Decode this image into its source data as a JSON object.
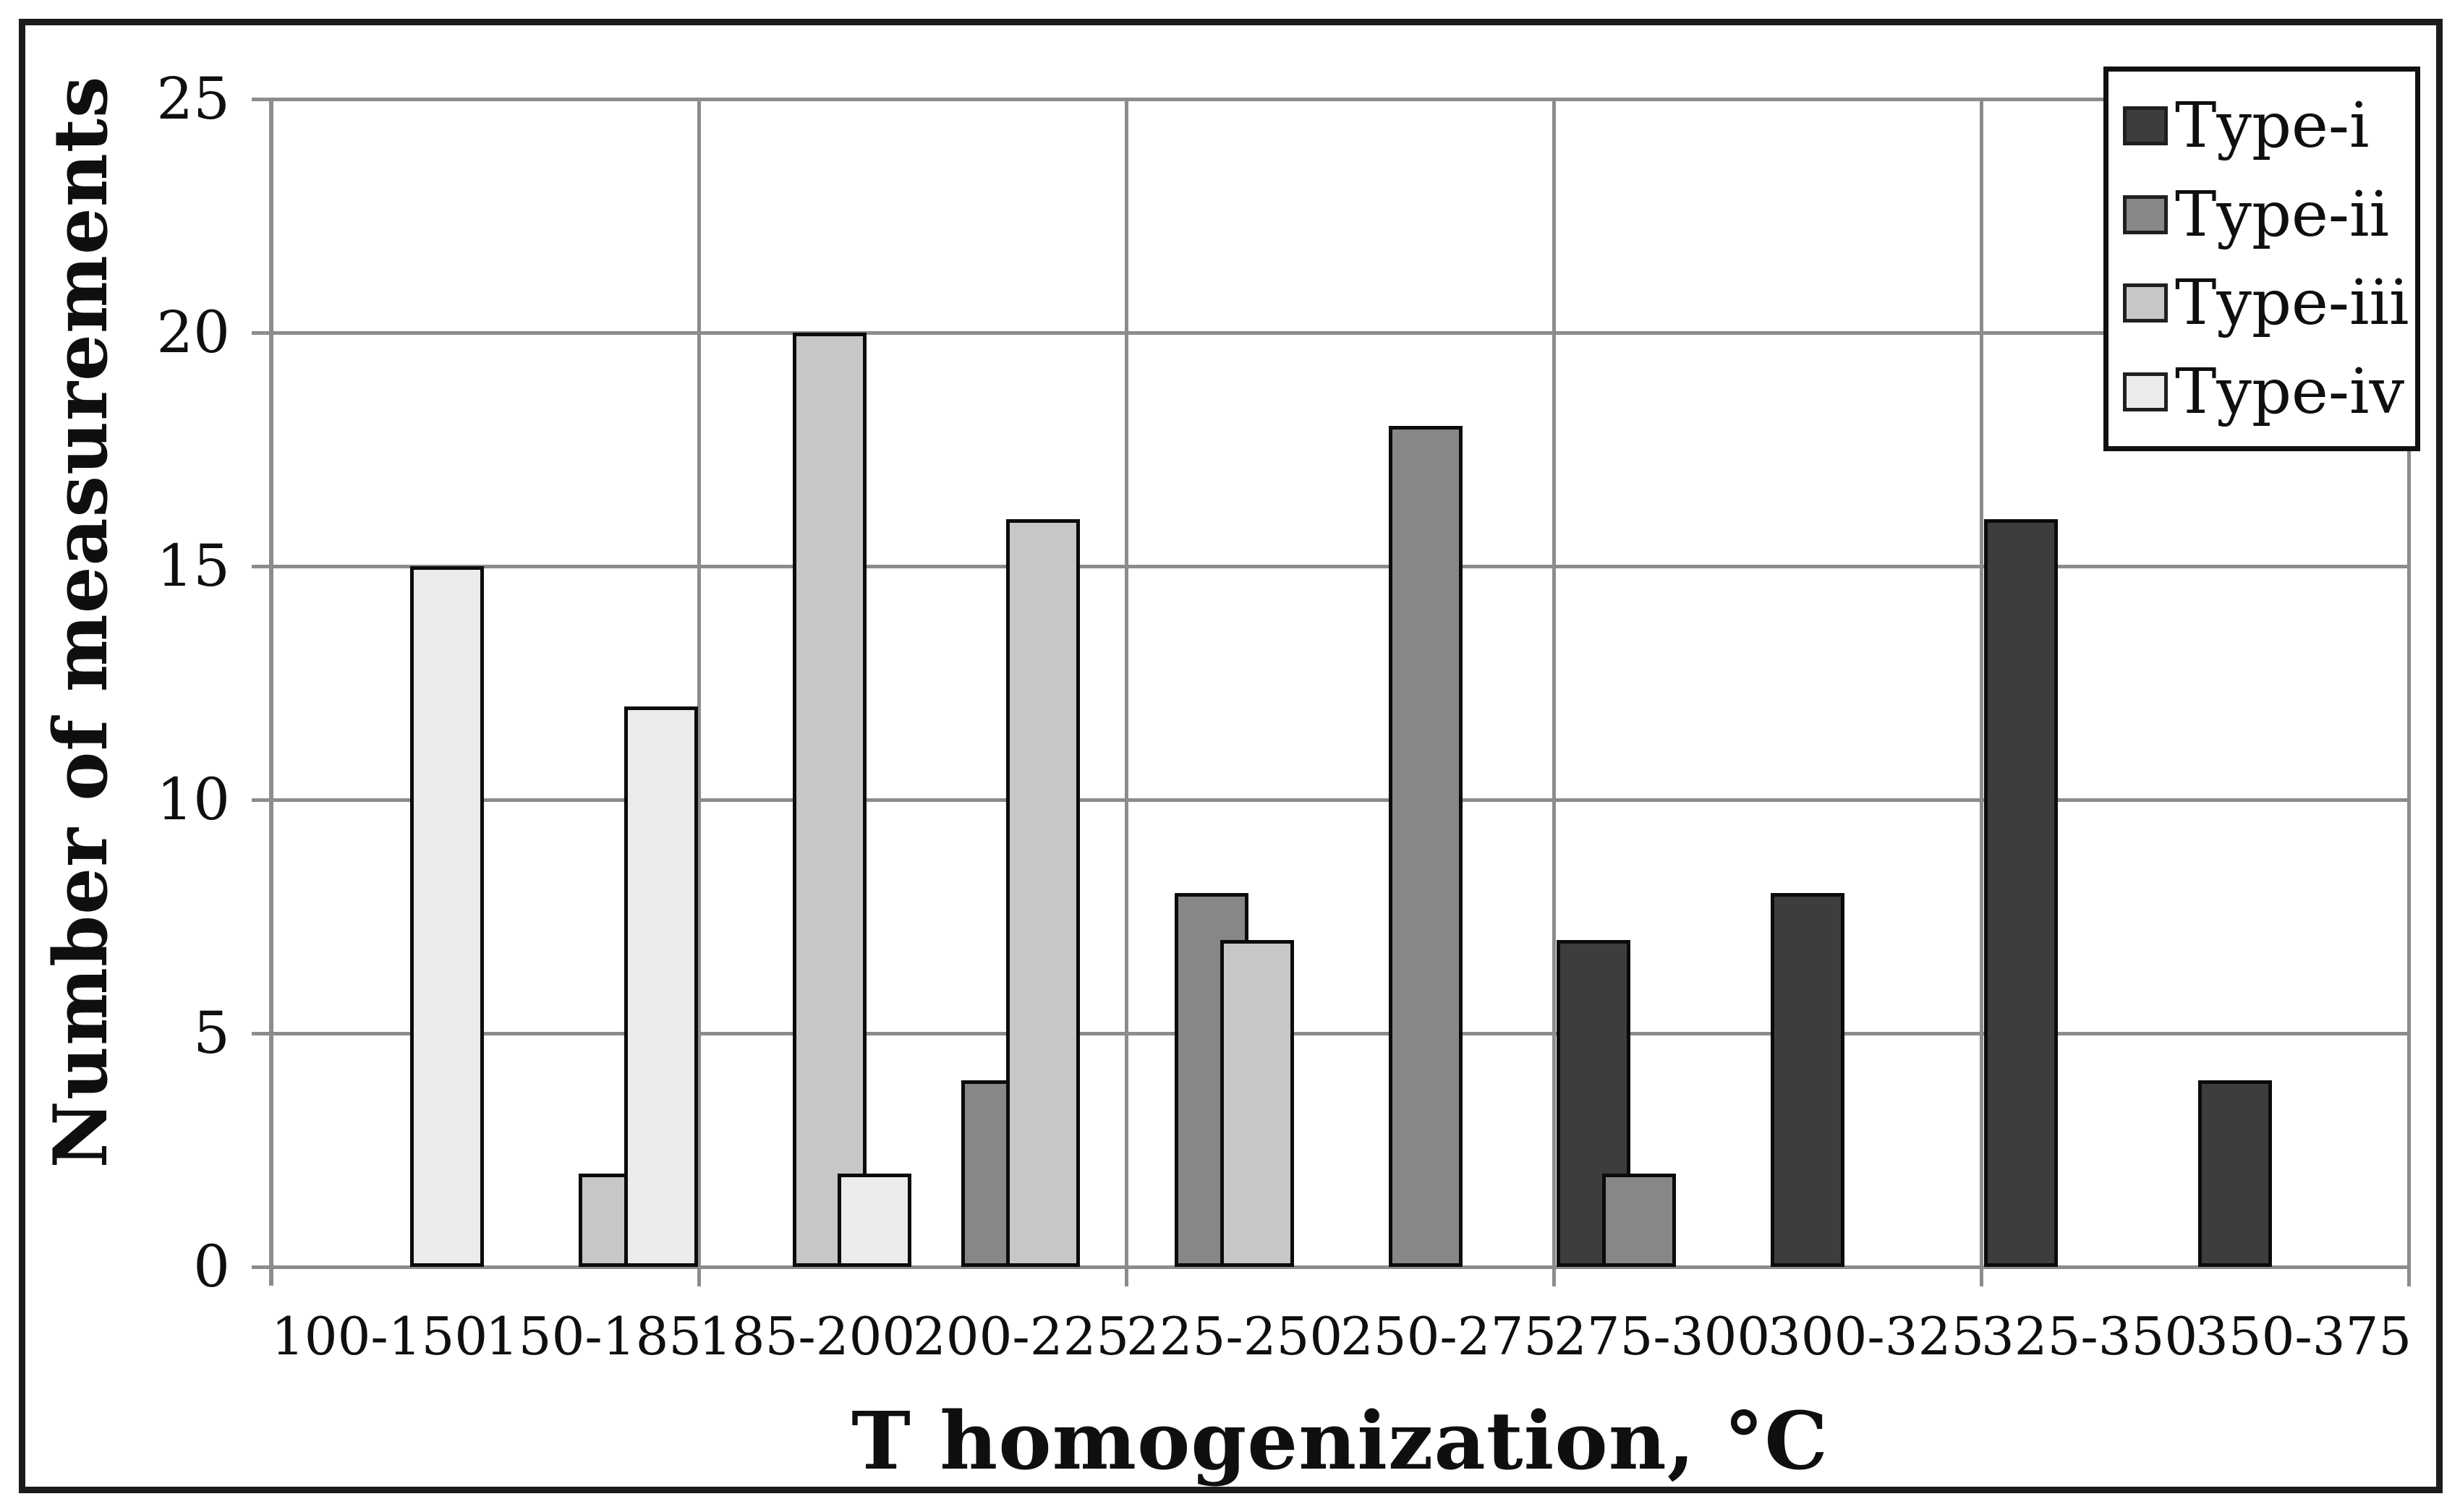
{
  "figure": {
    "background": "#ffffff",
    "frame_color": "#1c1c1c",
    "gridline_color": "#8c8c8c",
    "bar_border_color": "#0b0b0b"
  },
  "chart_data": {
    "type": "bar",
    "title": "",
    "xlabel": "T homogenization, °C",
    "ylabel": "Number of measurements",
    "categories": [
      "100-150",
      "150-185",
      "185-200",
      "200-225",
      "225-250",
      "250-275",
      "275-300",
      "300-325",
      "325-350",
      "350-375"
    ],
    "series": [
      {
        "name": "Type-i",
        "color": "#3d3d3d",
        "values": [
          0,
          0,
          0,
          0,
          0,
          0,
          7,
          8,
          16,
          4
        ]
      },
      {
        "name": "Type-ii",
        "color": "#878787",
        "values": [
          0,
          0,
          0,
          4,
          8,
          18,
          2,
          0,
          0,
          0
        ]
      },
      {
        "name": "Type-iii",
        "color": "#c7c7c7",
        "values": [
          0,
          2,
          20,
          16,
          7,
          0,
          0,
          0,
          0,
          0
        ]
      },
      {
        "name": "Type-iv",
        "color": "#ebebeb",
        "values": [
          15,
          12,
          2,
          0,
          0,
          0,
          0,
          0,
          0,
          0
        ]
      }
    ],
    "ylim": [
      0,
      25
    ],
    "yticks": [
      0,
      5,
      10,
      15,
      20,
      25
    ],
    "grid": "horizontal every 5 units; vertical every 2 categories",
    "legend_position": "inside top-right",
    "legend_entries": [
      "Type-i",
      "Type-ii",
      "Type-iii",
      "Type-iv"
    ]
  }
}
